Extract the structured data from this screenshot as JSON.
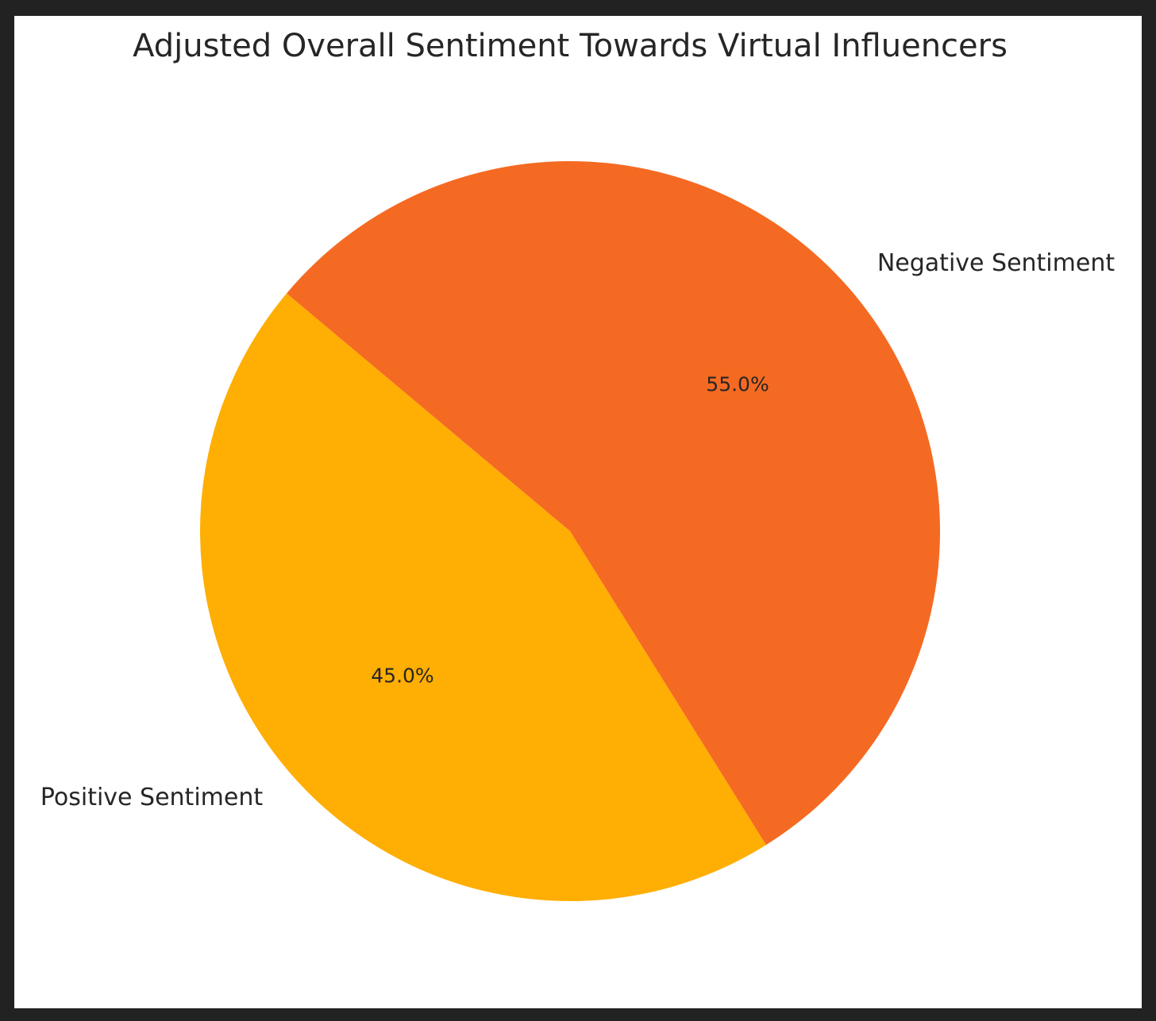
{
  "chart_data": {
    "type": "pie",
    "title": "Adjusted Overall Sentiment Towards Virtual Influencers",
    "categories": [
      "Positive Sentiment",
      "Negative Sentiment"
    ],
    "values": [
      45.0,
      55.0
    ],
    "percent_labels": [
      "45.0%",
      "55.0%"
    ],
    "colors": [
      "#FFAE03",
      "#F56A22"
    ],
    "start_angle_deg": 140,
    "direction": "counterclockwise"
  }
}
